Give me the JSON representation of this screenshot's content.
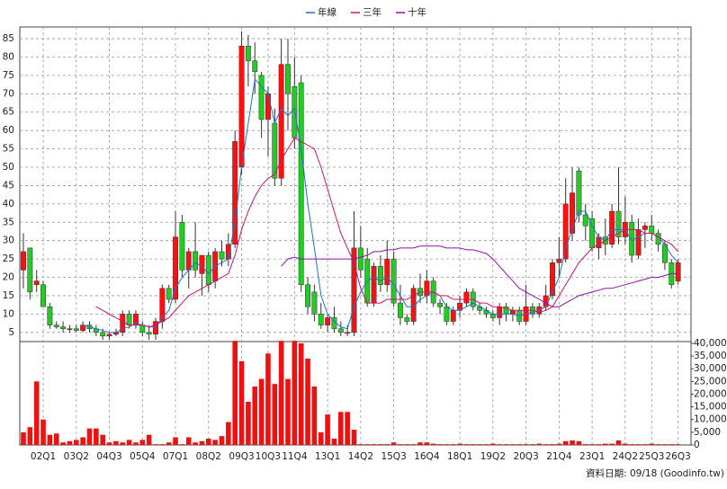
{
  "chart_data": {
    "type": "candlestick",
    "categories": [
      null,
      null,
      null,
      "02Q1",
      null,
      null,
      null,
      null,
      "03Q2",
      null,
      null,
      null,
      null,
      "04Q3",
      null,
      null,
      null,
      null,
      "05Q4",
      null,
      null,
      null,
      null,
      "07Q1",
      null,
      null,
      null,
      null,
      "08Q2",
      null,
      null,
      null,
      null,
      "09Q3",
      null,
      null,
      null,
      "10Q3",
      null,
      null,
      null,
      "11Q4",
      null,
      null,
      null,
      null,
      "13Q1",
      null,
      null,
      null,
      null,
      "14Q2",
      null,
      null,
      null,
      null,
      "15Q3",
      null,
      null,
      null,
      null,
      "16Q4",
      null,
      null,
      null,
      null,
      "18Q1",
      null,
      null,
      null,
      null,
      "19Q2",
      null,
      null,
      null,
      null,
      "20Q3",
      null,
      null,
      null,
      null,
      "21Q4",
      null,
      null,
      null,
      null,
      "23Q1",
      null,
      null,
      null,
      null,
      "24Q2",
      null,
      null,
      null,
      "25Q3",
      null,
      null,
      null,
      "26Q3"
    ],
    "candles": {
      "up_color": "#ff1010",
      "down_color": "#22cc22",
      "open": [
        22,
        28,
        18,
        18,
        12,
        7,
        6.5,
        6,
        6,
        5.5,
        7,
        6,
        5,
        4,
        4.5,
        5,
        10,
        7,
        7,
        5,
        4.5,
        8,
        17,
        14,
        35,
        22,
        27,
        21,
        26,
        19,
        27,
        25,
        29,
        50,
        83,
        79,
        75,
        63,
        62,
        47,
        78,
        72,
        73,
        18,
        16,
        10,
        7,
        9,
        6,
        5,
        5,
        28,
        25,
        13,
        23,
        18,
        25,
        13,
        9,
        8,
        17,
        15,
        19,
        13,
        12,
        8,
        11,
        13,
        16,
        12,
        11,
        10,
        9,
        12,
        10,
        11,
        8,
        12,
        10,
        12,
        15,
        24,
        25,
        32,
        49,
        37,
        36,
        28,
        31,
        29,
        38,
        31,
        35,
        26,
        33,
        34,
        32,
        29,
        24,
        19
      ],
      "high": [
        32,
        28,
        22,
        19,
        13,
        8,
        8,
        7,
        7,
        8,
        8,
        7,
        6,
        5,
        6,
        11,
        11,
        11,
        8,
        7,
        9,
        18,
        18,
        38,
        37,
        28,
        35,
        26,
        27,
        28,
        30,
        32,
        60,
        87,
        86,
        84,
        76,
        72,
        66,
        85,
        85,
        80,
        75,
        20,
        18,
        13,
        10,
        12,
        8,
        7,
        38,
        34,
        28,
        24,
        26,
        30,
        27,
        18,
        10,
        18,
        21,
        22,
        20,
        14,
        13,
        12,
        15,
        17,
        17,
        13,
        12,
        11,
        13,
        13,
        12,
        12,
        18,
        13,
        13,
        18,
        25,
        31,
        47,
        50,
        50,
        40,
        38,
        32,
        36,
        40,
        50,
        42,
        37,
        36,
        35,
        37,
        33,
        30,
        25,
        25
      ],
      "low": [
        17,
        14,
        16,
        12,
        6,
        6,
        5,
        5,
        5,
        5,
        5,
        4,
        3,
        3,
        4,
        4,
        6,
        6,
        4,
        3,
        3,
        6,
        13,
        13,
        20,
        17,
        20,
        15,
        16,
        17,
        23,
        23,
        28,
        48,
        72,
        70,
        58,
        53,
        45,
        45,
        60,
        55,
        16,
        10,
        8,
        6,
        5,
        5,
        4,
        4,
        4,
        20,
        12,
        12,
        16,
        16,
        12,
        7,
        7,
        7,
        13,
        13,
        12,
        10,
        7,
        7,
        9,
        12,
        11,
        10,
        9,
        8,
        7,
        8,
        8,
        7,
        7,
        9,
        9,
        11,
        14,
        20,
        24,
        30,
        35,
        30,
        27,
        25,
        26,
        28,
        29,
        29,
        24,
        25,
        28,
        30,
        27,
        22,
        17,
        18
      ],
      "close": [
        27,
        16,
        19,
        12,
        7,
        6.5,
        6,
        6,
        5.5,
        7,
        6,
        5,
        4,
        4.5,
        5,
        10,
        7,
        10,
        5,
        4.5,
        8,
        17,
        14,
        31,
        22,
        27,
        22,
        26,
        18,
        27,
        25,
        29,
        57,
        83,
        79,
        76,
        63,
        70,
        47,
        78,
        70,
        58,
        18,
        12,
        10,
        7,
        9,
        6,
        5,
        5,
        28,
        22,
        13,
        23,
        18,
        25,
        13,
        9,
        8,
        17,
        15,
        19,
        13,
        12,
        8,
        11,
        13,
        16,
        12,
        11,
        10,
        9,
        12,
        10,
        11,
        8,
        12,
        10,
        12,
        15,
        24,
        25,
        40,
        43,
        37,
        34,
        28,
        31,
        29,
        38,
        31,
        35,
        26,
        33,
        34,
        32,
        29,
        24,
        18,
        24
      ]
    },
    "volume": {
      "color": "#ee1111",
      "axis": "y2",
      "values": [
        5000,
        7000,
        25000,
        10000,
        4000,
        4500,
        1000,
        1500,
        2000,
        3000,
        6500,
        6500,
        4000,
        1000,
        1500,
        1000,
        2000,
        1000,
        2000,
        4000,
        300,
        300,
        1000,
        3000,
        300,
        3000,
        1000,
        1500,
        2500,
        2000,
        3500,
        9000,
        41000,
        33000,
        17000,
        23000,
        26000,
        36000,
        24000,
        41000,
        26000,
        41000,
        40000,
        34000,
        23000,
        5000,
        12000,
        2500,
        13000,
        13000,
        6000,
        300,
        300,
        300,
        300,
        300,
        1000,
        300,
        300,
        300,
        1000,
        1000,
        500,
        300,
        300,
        300,
        500,
        300,
        300,
        300,
        300,
        500,
        300,
        300,
        300,
        300,
        300,
        300,
        500,
        300,
        300,
        500,
        1500,
        1800,
        1500,
        300,
        300,
        300,
        500,
        500,
        1800,
        500,
        300,
        300,
        300,
        500,
        300,
        300,
        300,
        300
      ]
    },
    "series": [
      {
        "name": "年線",
        "color": "#1f6fd0",
        "values": [
          null,
          null,
          null,
          null,
          null,
          null,
          null,
          null,
          null,
          7,
          6.5,
          6,
          5.5,
          5,
          5,
          6,
          6.5,
          7.5,
          7,
          6.5,
          6.5,
          9,
          11,
          17,
          20,
          22,
          24,
          23,
          21,
          23,
          24,
          25,
          35,
          50,
          62,
          74,
          72,
          70,
          62,
          66,
          64,
          66,
          55,
          40,
          28,
          15,
          10,
          8,
          6.5,
          6,
          12,
          16,
          19,
          20,
          19,
          20,
          18,
          15,
          12,
          12,
          14,
          15,
          16,
          15,
          12,
          11,
          11,
          12,
          13,
          12,
          11,
          10,
          10,
          10,
          10,
          9.5,
          10,
          10.5,
          11,
          12,
          16,
          20,
          28,
          33,
          38,
          38,
          34,
          31,
          30,
          33,
          33,
          33,
          30,
          31,
          32,
          32,
          31,
          29,
          26,
          24
        ]
      },
      {
        "name": "三年",
        "color": "#d0106a",
        "values": [
          null,
          null,
          null,
          null,
          null,
          null,
          null,
          null,
          null,
          null,
          null,
          12,
          11,
          10,
          9,
          8,
          7,
          7,
          7,
          6.5,
          7,
          8,
          9,
          11,
          13,
          15,
          16,
          17,
          18,
          19,
          20,
          21,
          26,
          33,
          38,
          42,
          45,
          47,
          48,
          52,
          55,
          58,
          57,
          56,
          55,
          50,
          44,
          38,
          32,
          28,
          24,
          17,
          13,
          13,
          13,
          14,
          14,
          14,
          14,
          15,
          16,
          16,
          16,
          15,
          15,
          14,
          14,
          14,
          14,
          13,
          13,
          12,
          12,
          11.5,
          11,
          11,
          11,
          11,
          10.5,
          11,
          12,
          15,
          18,
          21,
          24,
          26,
          28,
          29,
          30,
          31,
          32,
          33,
          33,
          33,
          32,
          32,
          31,
          30,
          29,
          27
        ]
      },
      {
        "name": "十年",
        "color": "#9010b0",
        "values": [
          null,
          null,
          null,
          null,
          null,
          null,
          null,
          null,
          null,
          null,
          null,
          null,
          null,
          null,
          null,
          null,
          null,
          null,
          null,
          null,
          null,
          null,
          null,
          null,
          null,
          null,
          null,
          null,
          null,
          null,
          null,
          null,
          null,
          null,
          null,
          null,
          null,
          null,
          null,
          23,
          25,
          25.5,
          25,
          25,
          25,
          25,
          25,
          25,
          25,
          25,
          25,
          25.5,
          26,
          27,
          27,
          27.5,
          27.5,
          28,
          28,
          28,
          28.5,
          28.5,
          28.5,
          28.5,
          28,
          28,
          28,
          27.5,
          27.5,
          27,
          26.5,
          25,
          23,
          21,
          19,
          17,
          16,
          15,
          14,
          13,
          12,
          12,
          13,
          14,
          15,
          15.5,
          16,
          16.5,
          17,
          17,
          17.5,
          18,
          18.5,
          19,
          19.5,
          20,
          20,
          20.5,
          21,
          21
        ]
      }
    ],
    "ylim": [
      2.5,
      88.2
    ],
    "yticks": [
      5,
      10,
      15,
      20,
      25,
      30,
      35,
      40,
      45,
      50,
      55,
      60,
      65,
      70,
      75,
      80,
      85
    ],
    "y2lim": [
      0,
      40700
    ],
    "y2ticks": [
      0,
      {
        "value": 5000,
        "label": "5,000"
      },
      {
        "value": 10000,
        "label": "10,000"
      },
      {
        "value": 15000,
        "label": "15,000"
      },
      {
        "value": 20000,
        "label": "20,000"
      },
      {
        "value": 25000,
        "label": "25,000"
      },
      {
        "value": 30000,
        "label": "30,000"
      },
      {
        "value": 35000,
        "label": "35,000"
      },
      {
        "value": 40000,
        "label": "40,000"
      }
    ],
    "grid": true,
    "source": "資料日期: 09/18  (Goodinfo.tw)"
  }
}
